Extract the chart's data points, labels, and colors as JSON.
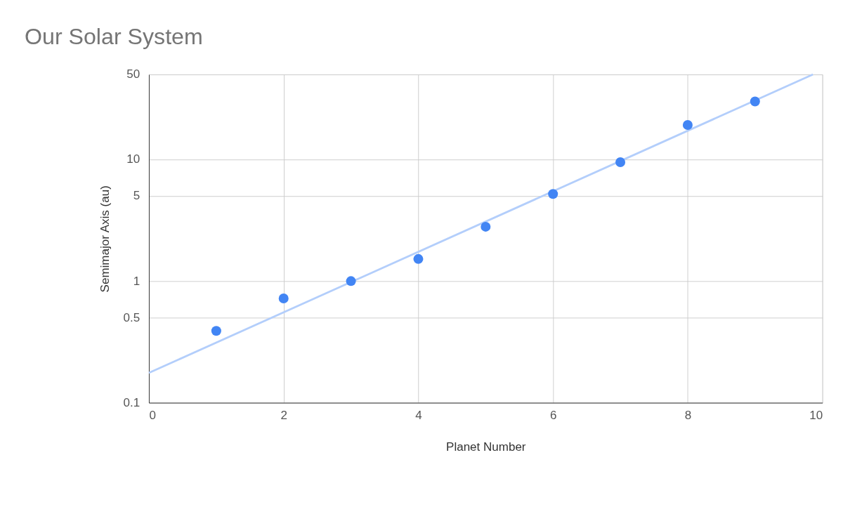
{
  "chart_data": {
    "type": "scatter",
    "title": "Our Solar System",
    "xlabel": "Planet Number",
    "ylabel": "Semimajor Axis (au)",
    "series": [
      {
        "color": "#4285f4",
        "x": [
          1,
          2,
          3,
          4,
          5,
          6,
          7,
          8,
          9
        ],
        "values": [
          0.39,
          0.72,
          1,
          1.52,
          2.8,
          5.2,
          9.5,
          19.2,
          30
        ]
      },
      {
        "type": "line",
        "marker": "none",
        "color": "#b3cefb",
        "x": [
          0,
          9.86
        ],
        "values": [
          0.176,
          50
        ]
      }
    ],
    "xlim": [
      0,
      10
    ],
    "xticks": [
      0,
      2,
      4,
      6,
      8,
      10
    ],
    "ylim": [
      0.1,
      50
    ],
    "yticks": [
      0.1,
      0.5,
      1,
      5,
      10,
      50
    ],
    "log": "y",
    "grid": true,
    "marker": "circle",
    "line_style": "solid"
  }
}
